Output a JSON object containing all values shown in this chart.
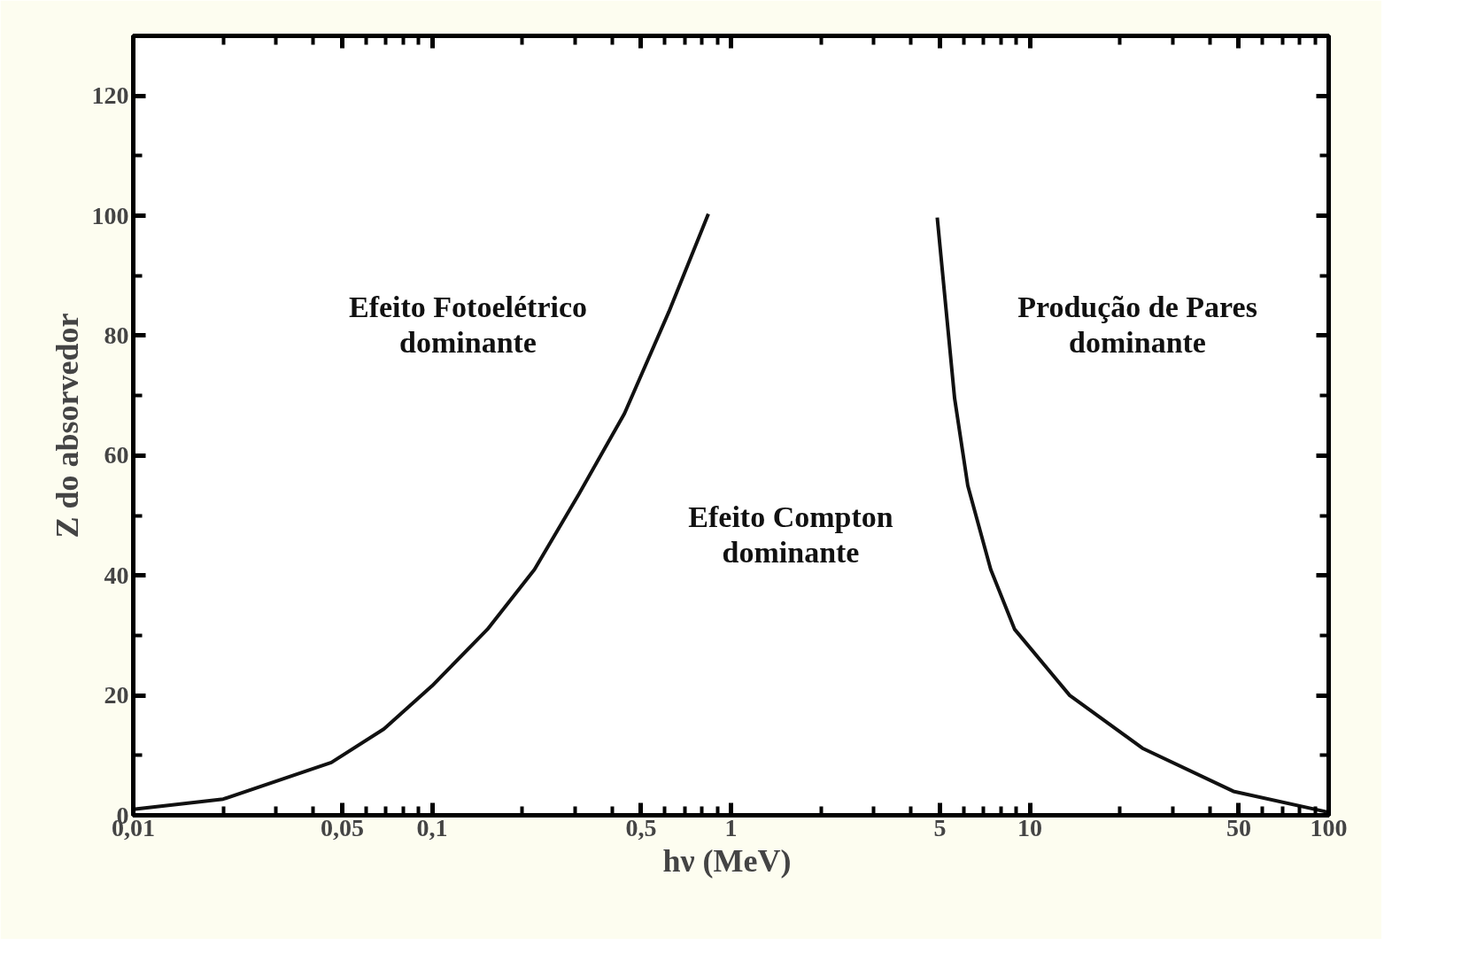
{
  "chart_data": {
    "type": "line",
    "xlabel": "hν  (MeV)",
    "ylabel": "Z do absorvedor",
    "log": "x",
    "grid": false,
    "marker": "none",
    "line_style": "solid",
    "xlim": [
      0.01,
      100
    ],
    "ylim": [
      0,
      130
    ],
    "xticks": [
      {
        "value": 0.01,
        "label": "0,01"
      },
      {
        "value": 0.02,
        "label": null
      },
      {
        "value": 0.03,
        "label": null
      },
      {
        "value": 0.04,
        "label": null
      },
      {
        "value": 0.05,
        "label": "0,05"
      },
      {
        "value": 0.06,
        "label": null
      },
      {
        "value": 0.07,
        "label": null
      },
      {
        "value": 0.08,
        "label": null
      },
      {
        "value": 0.09,
        "label": null
      },
      {
        "value": 0.1,
        "label": "0,1"
      },
      {
        "value": 0.2,
        "label": null
      },
      {
        "value": 0.3,
        "label": null
      },
      {
        "value": 0.4,
        "label": null
      },
      {
        "value": 0.5,
        "label": "0,5"
      },
      {
        "value": 0.6,
        "label": null
      },
      {
        "value": 0.7,
        "label": null
      },
      {
        "value": 0.8,
        "label": null
      },
      {
        "value": 0.9,
        "label": null
      },
      1,
      {
        "value": 2,
        "label": null
      },
      {
        "value": 3,
        "label": null
      },
      {
        "value": 4,
        "label": null
      },
      5,
      {
        "value": 6,
        "label": null
      },
      {
        "value": 7,
        "label": null
      },
      {
        "value": 8,
        "label": null
      },
      {
        "value": 9,
        "label": null
      },
      10,
      {
        "value": 20,
        "label": null
      },
      {
        "value": 30,
        "label": null
      },
      {
        "value": 40,
        "label": null
      },
      50,
      {
        "value": 60,
        "label": null
      },
      {
        "value": 70,
        "label": null
      },
      {
        "value": 80,
        "label": null
      },
      {
        "value": 90,
        "label": null
      },
      100
    ],
    "yticks": [
      0,
      {
        "value": 10,
        "label": null
      },
      20,
      {
        "value": 30,
        "label": null
      },
      40,
      {
        "value": 50,
        "label": null
      },
      60,
      {
        "value": 70,
        "label": null
      },
      80,
      {
        "value": 90,
        "label": null
      },
      100,
      {
        "value": 110,
        "label": null
      },
      120
    ],
    "series": [
      {
        "color": "#111111",
        "x": [
          0.01,
          0.02,
          0.046,
          0.069,
          0.1,
          0.153,
          0.22,
          0.31,
          0.44,
          0.62,
          0.84
        ],
        "values": [
          1,
          2.7,
          8.8,
          14.4,
          21.6,
          31,
          41,
          53.6,
          67,
          84,
          100.3
        ]
      },
      {
        "color": "#111111",
        "x": [
          4.9,
          5.6,
          6.2,
          7.4,
          8.9,
          13.6,
          23.8,
          48,
          100
        ],
        "values": [
          99.7,
          69.6,
          55,
          41,
          31,
          20,
          11.2,
          4,
          0.5
        ]
      }
    ],
    "annotations": [
      "Efeito Fotoelétrico\ndominante",
      "Efeito Compton\ndominante",
      "Produção de Pares\ndominante"
    ]
  }
}
